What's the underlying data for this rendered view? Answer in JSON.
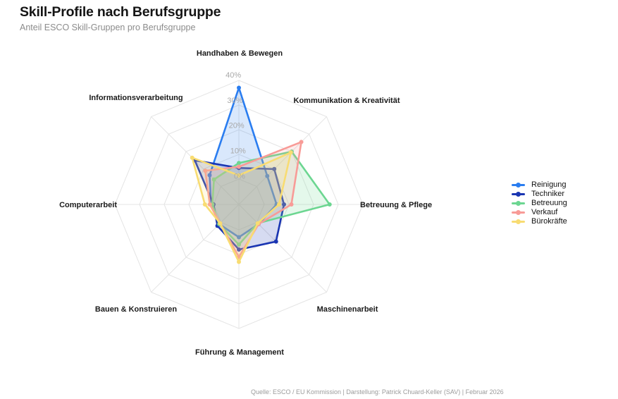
{
  "header": {
    "title": "Skill-Profile nach Berufsgruppe",
    "subtitle": "Anteil ESCO Skill-Gruppen pro Berufsgruppe"
  },
  "footer": {
    "source": "Quelle: ESCO / EU Kommission | Darstellung: Patrick Chuard-Keller (SAV) | Februar 2026"
  },
  "chart_data": {
    "type": "radar",
    "unit": "%",
    "axes": [
      "Handhaben & Bewegen",
      "Kommunikation & Kreativität",
      "Betreuung & Pflege",
      "Maschinenarbeit",
      "Führung & Management",
      "Bauen & Konstruieren",
      "Computerarbeit",
      "Informationsverarbeitung"
    ],
    "radial_ticks": [
      0,
      10,
      20,
      30,
      40
    ],
    "radial_tick_labels": [
      "0%",
      "10%",
      "20%",
      "30%",
      "40%"
    ],
    "rlim": [
      0,
      40
    ],
    "grid": true,
    "grid_shape": "polygon",
    "legend_position": "right",
    "series": [
      {
        "name": "Reinigung",
        "color": "#2A7DF0",
        "values": [
          37,
          6,
          5,
          1,
          3,
          1,
          1,
          6.5
        ]
      },
      {
        "name": "Techniker",
        "color": "#1A35B2",
        "values": [
          4.5,
          10,
          8,
          11,
          8,
          2,
          0,
          15
        ]
      },
      {
        "name": "Betreuung",
        "color": "#6CD691",
        "values": [
          6.5,
          20,
          26.5,
          0.5,
          6,
          1,
          0.5,
          4
        ]
      },
      {
        "name": "Verkauf",
        "color": "#F89B97",
        "values": [
          5,
          25.5,
          11,
          1,
          11,
          0.5,
          1.5,
          9
        ]
      },
      {
        "name": "Bürokräfte",
        "color": "#F8DC72",
        "values": [
          1.5,
          19.5,
          6,
          0.5,
          13,
          0.5,
          3.5,
          16.5
        ]
      }
    ]
  }
}
